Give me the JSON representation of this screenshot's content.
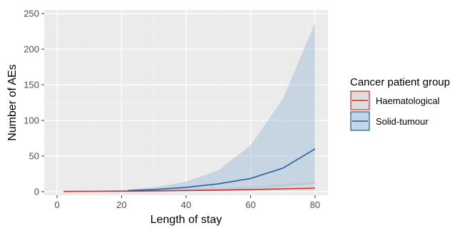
{
  "chart_data": {
    "type": "line",
    "title": "",
    "xlabel": "Length of stay",
    "ylabel": "Number of AEs",
    "xlim": [
      -4,
      84
    ],
    "ylim": [
      -5,
      255
    ],
    "x_ticks": [
      0,
      20,
      40,
      60,
      80
    ],
    "y_ticks": [
      0,
      50,
      100,
      150,
      200,
      250
    ],
    "grid": true,
    "legend": {
      "title": "Cancer patient group",
      "placement": "right"
    },
    "series": [
      {
        "name": "Haematological",
        "color": "#d62728",
        "band_color": "#c8c8c8",
        "x": [
          2,
          10,
          20,
          30,
          40,
          50,
          60,
          70,
          80
        ],
        "y": [
          0.3,
          0.5,
          0.8,
          1.1,
          1.6,
          2.2,
          3.0,
          4.0,
          5.0
        ],
        "lower": [
          0.1,
          0.2,
          0.3,
          0.4,
          0.6,
          0.8,
          1.0,
          1.2,
          1.5
        ],
        "upper": [
          0.6,
          1.0,
          1.6,
          2.4,
          3.6,
          5.2,
          7.5,
          10.5,
          14.0
        ]
      },
      {
        "name": "Solid-tumour",
        "color": "#1f5b99",
        "band_color": "#9bbbd8",
        "x": [
          22,
          30,
          40,
          50,
          60,
          70,
          80
        ],
        "y": [
          1.5,
          3.0,
          6.0,
          11.0,
          18.5,
          33.0,
          60.0
        ],
        "lower": [
          0.8,
          1.2,
          2.0,
          3.0,
          4.5,
          7.0,
          10.0
        ],
        "upper": [
          3.0,
          6.0,
          14.0,
          30.0,
          65.0,
          130.0,
          237.0
        ]
      }
    ]
  }
}
